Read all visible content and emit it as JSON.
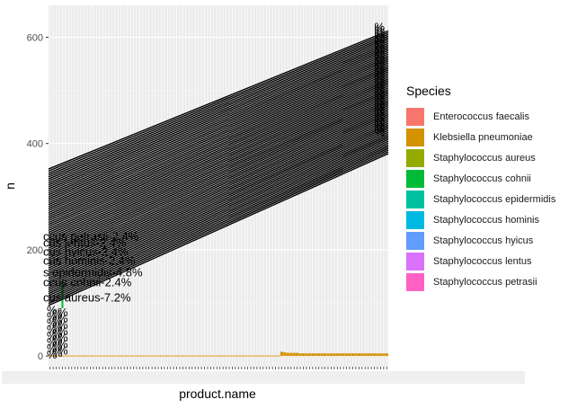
{
  "chart_data": {
    "type": "bar",
    "xlabel": "product.name",
    "ylabel": "n",
    "y_ticks": [
      0,
      200,
      400,
      600
    ],
    "ylim": [
      -20,
      660
    ],
    "grid": true,
    "legend": {
      "title": "Species",
      "placement": "right",
      "items": [
        {
          "name": "Enterococcus faecalis",
          "color": "#F8766D"
        },
        {
          "name": "Klebsiella pneumoniae",
          "color": "#D39200"
        },
        {
          "name": "Staphylococcus aureus",
          "color": "#93AA00"
        },
        {
          "name": "Staphylococcus cohnii",
          "color": "#00BA38"
        },
        {
          "name": "Staphylococcus epidermidis",
          "color": "#00C19F"
        },
        {
          "name": "Staphylococcus hominis",
          "color": "#00B9E3"
        },
        {
          "name": "Staphylococcus hyicus",
          "color": "#619CFF"
        },
        {
          "name": "Staphylococcus lentus",
          "color": "#DB72FB"
        },
        {
          "name": "Staphylococcus petrasii",
          "color": "#FF61C3"
        }
      ]
    },
    "visible_labels": [
      {
        "text": "ccus petrasii-2.4%",
        "y": 218
      },
      {
        "text": "cus lentus-2.4%",
        "y": 206
      },
      {
        "text": "cus hyicus-2.4%",
        "y": 189
      },
      {
        "text": "cus hominis-2.4%",
        "y": 172
      },
      {
        "text": "s epidermidis-4.8%",
        "y": 150
      },
      {
        "text": "ccus cohnii-2.4%",
        "y": 131
      },
      {
        "text": "cus aureus-7.2%",
        "y": 103
      }
    ],
    "label_y_range": [
      -5,
      360
    ],
    "label_values": [
      {
        "label": "Enterococcus faecalis",
        "y": 620
      },
      {
        "label": "Klebsiella pneumoniae",
        "y": 410
      }
    ],
    "stack_band": {
      "x_start": 0,
      "x_end": 1,
      "y_left": 352,
      "y_right": 612
    },
    "product_count": 110,
    "bars": {
      "Klebsiella pneumoniae": [
        1,
        1,
        1,
        1,
        1,
        1,
        1,
        1,
        1,
        1,
        1,
        1,
        1,
        1,
        1,
        1,
        1,
        1,
        1,
        1,
        1,
        1,
        1,
        1,
        1,
        1,
        1,
        1,
        1,
        1,
        1,
        1,
        1,
        1,
        1,
        1,
        1,
        1,
        1,
        1,
        1,
        1,
        1,
        1,
        1,
        1,
        1,
        1,
        1,
        1,
        1,
        1,
        1,
        1,
        1,
        1,
        1,
        1,
        1,
        1,
        1,
        1,
        1,
        1,
        1,
        1,
        1,
        1,
        1,
        1,
        1,
        1,
        1,
        1,
        1,
        8,
        7,
        6,
        6,
        6,
        6,
        5,
        5,
        5,
        5,
        5,
        5,
        5,
        5,
        5,
        5,
        5,
        5,
        5,
        5,
        5,
        5,
        5,
        5,
        5,
        5,
        5,
        5,
        5,
        5,
        5,
        5,
        5,
        5,
        5
      ],
      "Staphylococcus aureus": [
        0,
        0,
        0,
        0,
        0,
        0,
        0,
        0,
        0,
        0,
        0,
        0,
        0,
        0,
        0,
        0,
        0,
        0,
        0,
        0,
        0,
        0,
        0,
        0,
        0,
        0,
        0,
        0,
        0,
        0,
        0,
        0,
        0,
        0,
        0,
        0,
        0,
        0,
        0,
        0,
        0,
        0,
        0,
        0,
        0,
        0,
        0,
        0,
        0,
        0,
        0,
        0,
        0,
        0,
        0,
        0,
        0,
        0,
        0,
        0,
        0,
        0,
        0,
        0,
        0,
        0,
        0,
        0,
        0,
        0,
        0,
        0,
        0,
        0,
        0,
        0,
        0,
        0,
        0,
        0,
        0,
        0,
        0,
        0,
        0,
        0,
        0,
        0,
        0,
        0,
        0,
        0,
        0,
        0,
        0,
        0,
        0,
        0,
        0,
        0,
        0,
        0,
        0,
        0,
        0,
        0,
        0,
        0,
        0,
        0
      ],
      "Staphylococcus cohnii": [
        0,
        0,
        0,
        0,
        0,
        0,
        0,
        0,
        0,
        0,
        0,
        0,
        0,
        0,
        0,
        0,
        0,
        0,
        0,
        0,
        0,
        0,
        0,
        0,
        0,
        0,
        0,
        0,
        0,
        0,
        0,
        0,
        0,
        0,
        0,
        0,
        0,
        0,
        0,
        0,
        0,
        0,
        0,
        0,
        0,
        0,
        0,
        0,
        0,
        0,
        0,
        0,
        0,
        0,
        0,
        0,
        0,
        0,
        0,
        0,
        0,
        0,
        0,
        0,
        0,
        0,
        0,
        0,
        0,
        0,
        0,
        0,
        0,
        0,
        0,
        0,
        0,
        0,
        0,
        0,
        0,
        0,
        0,
        0,
        0,
        0,
        0,
        0,
        0,
        0,
        0,
        0,
        0,
        0,
        0,
        0,
        0,
        0,
        0,
        0,
        0,
        0,
        0,
        0,
        0,
        0,
        0,
        0,
        0,
        0
      ]
    },
    "green_markers": [
      {
        "x_index": 4,
        "y_from": 90,
        "y_to": 140
      }
    ]
  }
}
